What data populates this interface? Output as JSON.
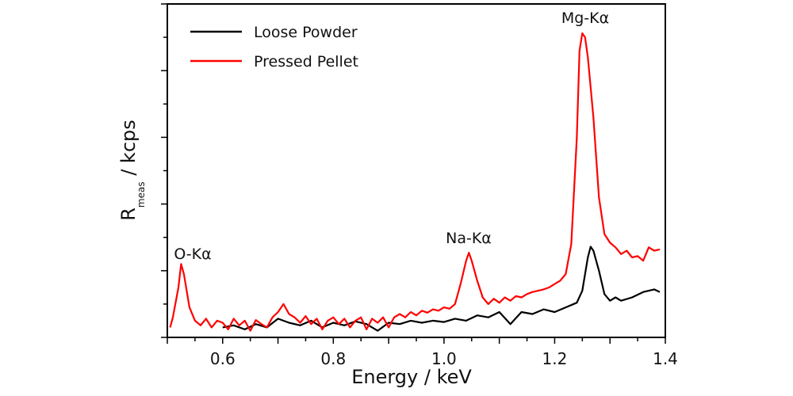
{
  "chart_data": {
    "type": "line",
    "title": "",
    "xlabel": "Energy / keV",
    "ylabel": {
      "main": "R",
      "subscript": "meas",
      "unit": " / kcps"
    },
    "xlim": [
      0.5,
      1.4
    ],
    "ylim": [
      0,
      5
    ],
    "x_ticks": [
      "0.6",
      "0.8",
      "1.0",
      "1.2",
      "1.4"
    ],
    "y_tick_labels_shown": false,
    "grid": false,
    "legend_position": "top-left",
    "series": [
      {
        "name": "Loose Powder",
        "color": "#000000",
        "x": [
          0.6,
          0.62,
          0.64,
          0.66,
          0.68,
          0.7,
          0.72,
          0.74,
          0.76,
          0.78,
          0.8,
          0.82,
          0.84,
          0.86,
          0.88,
          0.9,
          0.92,
          0.94,
          0.96,
          0.98,
          1.0,
          1.02,
          1.04,
          1.06,
          1.08,
          1.1,
          1.12,
          1.14,
          1.16,
          1.18,
          1.2,
          1.22,
          1.24,
          1.25,
          1.26,
          1.265,
          1.27,
          1.28,
          1.29,
          1.3,
          1.31,
          1.32,
          1.34,
          1.36,
          1.38,
          1.39
        ],
        "y": [
          0.15,
          0.18,
          0.12,
          0.2,
          0.15,
          0.28,
          0.22,
          0.18,
          0.25,
          0.15,
          0.22,
          0.18,
          0.24,
          0.2,
          0.1,
          0.22,
          0.2,
          0.25,
          0.22,
          0.25,
          0.23,
          0.28,
          0.25,
          0.33,
          0.3,
          0.38,
          0.2,
          0.38,
          0.35,
          0.42,
          0.38,
          0.45,
          0.52,
          0.7,
          1.2,
          1.36,
          1.3,
          1.0,
          0.65,
          0.55,
          0.6,
          0.55,
          0.6,
          0.68,
          0.72,
          0.68
        ]
      },
      {
        "name": "Pressed Pellet",
        "color": "#ff0000",
        "x": [
          0.505,
          0.51,
          0.52,
          0.525,
          0.53,
          0.54,
          0.55,
          0.56,
          0.57,
          0.58,
          0.59,
          0.6,
          0.61,
          0.62,
          0.63,
          0.64,
          0.65,
          0.66,
          0.67,
          0.68,
          0.69,
          0.7,
          0.71,
          0.72,
          0.73,
          0.74,
          0.75,
          0.76,
          0.77,
          0.78,
          0.79,
          0.8,
          0.81,
          0.82,
          0.83,
          0.84,
          0.85,
          0.86,
          0.87,
          0.88,
          0.89,
          0.9,
          0.91,
          0.92,
          0.93,
          0.94,
          0.95,
          0.96,
          0.97,
          0.98,
          0.99,
          1.0,
          1.01,
          1.02,
          1.03,
          1.04,
          1.045,
          1.05,
          1.06,
          1.07,
          1.08,
          1.09,
          1.1,
          1.11,
          1.12,
          1.13,
          1.14,
          1.15,
          1.16,
          1.17,
          1.18,
          1.19,
          1.2,
          1.21,
          1.22,
          1.23,
          1.24,
          1.245,
          1.25,
          1.255,
          1.26,
          1.27,
          1.28,
          1.29,
          1.3,
          1.31,
          1.32,
          1.33,
          1.34,
          1.35,
          1.36,
          1.37,
          1.38,
          1.39
        ],
        "y": [
          0.15,
          0.3,
          0.75,
          1.1,
          0.95,
          0.45,
          0.25,
          0.18,
          0.28,
          0.15,
          0.25,
          0.22,
          0.12,
          0.28,
          0.18,
          0.25,
          0.1,
          0.26,
          0.2,
          0.15,
          0.3,
          0.38,
          0.5,
          0.35,
          0.3,
          0.22,
          0.32,
          0.2,
          0.28,
          0.12,
          0.25,
          0.3,
          0.2,
          0.28,
          0.15,
          0.25,
          0.3,
          0.12,
          0.28,
          0.22,
          0.3,
          0.15,
          0.3,
          0.35,
          0.3,
          0.38,
          0.33,
          0.4,
          0.37,
          0.42,
          0.4,
          0.45,
          0.43,
          0.5,
          0.8,
          1.15,
          1.27,
          1.15,
          0.85,
          0.6,
          0.5,
          0.58,
          0.52,
          0.6,
          0.55,
          0.62,
          0.6,
          0.65,
          0.68,
          0.7,
          0.72,
          0.75,
          0.8,
          0.85,
          0.95,
          1.4,
          3.0,
          4.3,
          4.56,
          4.5,
          4.2,
          3.3,
          2.1,
          1.55,
          1.42,
          1.35,
          1.25,
          1.3,
          1.2,
          1.22,
          1.15,
          1.35,
          1.3,
          1.32
        ]
      }
    ],
    "annotations": [
      {
        "text": "O-Kα",
        "x": 0.525,
        "y": 1.1
      },
      {
        "text": "Na-Kα",
        "x": 1.045,
        "y": 1.27
      },
      {
        "text": "Mg-Kα",
        "x": 1.25,
        "y": 4.56
      }
    ]
  }
}
